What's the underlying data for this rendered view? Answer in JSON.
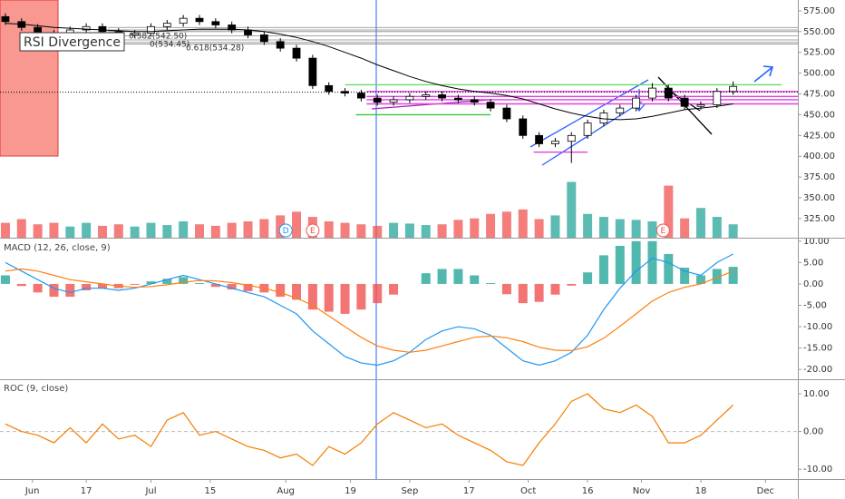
{
  "chart_data": [
    {
      "type": "candlestick",
      "x": [
        -5,
        -2,
        1,
        4,
        7,
        10,
        13,
        16,
        19,
        22,
        25,
        28,
        31,
        34,
        37,
        40,
        43,
        46,
        49,
        52,
        55,
        58,
        61,
        64,
        67,
        70,
        73,
        76,
        79,
        82,
        85,
        88,
        91,
        94,
        97,
        100,
        103,
        106,
        109,
        112,
        115,
        118,
        121,
        124,
        127,
        130
      ],
      "open": [
        568,
        562,
        555,
        548,
        545,
        552,
        556,
        550,
        546,
        548,
        556,
        560,
        566,
        562,
        558,
        552,
        546,
        538,
        530,
        518,
        485,
        478,
        476,
        470,
        465,
        468,
        472,
        474,
        470,
        468,
        465,
        458,
        445,
        425,
        415,
        418,
        425,
        440,
        452,
        458,
        470,
        482,
        470,
        460,
        462,
        478
      ],
      "high": [
        572,
        566,
        559,
        552,
        556,
        560,
        560,
        554,
        552,
        560,
        564,
        570,
        570,
        566,
        562,
        556,
        550,
        542,
        534,
        522,
        489,
        482,
        480,
        474,
        472,
        476,
        478,
        478,
        474,
        472,
        469,
        462,
        449,
        429,
        422,
        429,
        444,
        456,
        462,
        474,
        488,
        486,
        474,
        466,
        482,
        490
      ],
      "low": [
        558,
        551,
        544,
        541,
        541,
        548,
        546,
        542,
        542,
        544,
        552,
        556,
        558,
        554,
        548,
        542,
        534,
        526,
        514,
        481,
        474,
        472,
        466,
        461,
        461,
        464,
        468,
        466,
        464,
        461,
        454,
        441,
        421,
        411,
        411,
        392,
        421,
        436,
        448,
        454,
        466,
        466,
        456,
        456,
        458,
        474
      ],
      "close": [
        562,
        555,
        548,
        545,
        552,
        556,
        550,
        546,
        548,
        556,
        560,
        566,
        562,
        558,
        552,
        546,
        538,
        530,
        518,
        485,
        478,
        476,
        470,
        465,
        468,
        472,
        474,
        470,
        468,
        465,
        458,
        445,
        425,
        415,
        418,
        425,
        440,
        452,
        458,
        470,
        482,
        470,
        460,
        462,
        478,
        484
      ],
      "up_color": "#ffffff",
      "down_color": "#000000",
      "ma": {
        "color": "#000000",
        "values": [
          560,
          559,
          557,
          555,
          554,
          553,
          552,
          551,
          550,
          550,
          551,
          552,
          553,
          553,
          553,
          552,
          550,
          547,
          543,
          538,
          532,
          525,
          518,
          510,
          503,
          496,
          490,
          485,
          481,
          478,
          476,
          473,
          469,
          463,
          457,
          452,
          448,
          445,
          444,
          445,
          448,
          452,
          456,
          458,
          460,
          463
        ]
      },
      "xlim": [
        -6,
        142
      ],
      "xticks": [
        {
          "value": 0,
          "label": "Jun"
        },
        {
          "value": 10,
          "label": "17"
        },
        {
          "value": 22,
          "label": "Jul"
        },
        {
          "value": 33,
          "label": "15"
        },
        {
          "value": 47,
          "label": "Aug"
        },
        {
          "value": 59,
          "label": "19"
        },
        {
          "value": 70,
          "label": "Sep"
        },
        {
          "value": 81,
          "label": "17"
        },
        {
          "value": 92,
          "label": "Oct"
        },
        {
          "value": 103,
          "label": "16"
        },
        {
          "value": 113,
          "label": "Nov"
        },
        {
          "value": 124,
          "label": "18"
        },
        {
          "value": 136,
          "label": "Dec"
        }
      ],
      "ylim": [
        302,
        588
      ],
      "yticks": [
        {
          "value": 325,
          "label": "325.00"
        },
        {
          "value": 350,
          "label": "350.00"
        },
        {
          "value": 375,
          "label": "375.00"
        },
        {
          "value": 400,
          "label": "400.00"
        },
        {
          "value": 425,
          "label": "425.00"
        },
        {
          "value": 450,
          "label": "450.00"
        },
        {
          "value": 475,
          "label": "475.00"
        },
        {
          "value": 500,
          "label": "500.00"
        },
        {
          "value": 525,
          "label": "525.00"
        },
        {
          "value": 550,
          "label": "550.00"
        },
        {
          "value": 575,
          "label": "575.00"
        }
      ],
      "hlines": [
        {
          "value": 555,
          "color": "#888888",
          "from": 14,
          "to": 142
        },
        {
          "value": 552,
          "color": "#888888",
          "from": 14,
          "to": 142
        },
        {
          "value": 550,
          "color": "#888888",
          "from": 14,
          "to": 142
        },
        {
          "value": 545,
          "color": "#888888",
          "from": 14,
          "to": 142
        },
        {
          "value": 540,
          "color": "#888888",
          "from": 14,
          "to": 142
        },
        {
          "value": 537,
          "color": "#888888",
          "from": 14,
          "to": 142
        },
        {
          "value": 535,
          "color": "#888888",
          "from": 14,
          "to": 142
        },
        {
          "value": 486,
          "color": "#66dd66",
          "from": 58,
          "to": 139
        },
        {
          "value": 450,
          "color": "#33cc33",
          "from": 60,
          "to": 85
        },
        {
          "value": 478,
          "color": "#e040e0",
          "from": 62,
          "to": 142
        },
        {
          "value": 472,
          "color": "#e040e0",
          "from": 62,
          "to": 142
        },
        {
          "value": 468,
          "color": "#e040e0",
          "from": 62,
          "to": 142
        },
        {
          "value": 463,
          "color": "#e040e0",
          "from": 62,
          "to": 142
        },
        {
          "value": 405,
          "color": "#e040e0",
          "from": 93,
          "to": 103
        },
        {
          "value": 477,
          "color": "#000000",
          "from": -6,
          "to": 142,
          "dash": true
        }
      ],
      "events": [
        {
          "label": "D",
          "x": 47,
          "color": "#2196f3"
        },
        {
          "label": "E",
          "x": 52,
          "color": "#ef5350"
        },
        {
          "label": "E",
          "x": 117,
          "color": "#ef5350"
        }
      ],
      "annotations": [
        "RSI Divergence",
        "0.382(542.50)",
        "0(534.45)",
        "0.618(534.28)"
      ]
    },
    {
      "type": "bar",
      "values": [
        2,
        2.5,
        1.8,
        2,
        1.5,
        2,
        1.6,
        1.8,
        1.5,
        2,
        1.7,
        2.2,
        1.8,
        1.6,
        2,
        2.2,
        2.5,
        3,
        3.5,
        2.8,
        2.2,
        2,
        1.8,
        1.6,
        2,
        1.9,
        1.7,
        1.8,
        2.4,
        2.6,
        3.2,
        3.5,
        3.8,
        2.5,
        3,
        7.5,
        3.2,
        2.8,
        2.5,
        2.4,
        2.2,
        7,
        2.6,
        4,
        2.8,
        1.8
      ],
      "up_color": "#26a69a",
      "down_color": "#ef5350",
      "ylim": [
        0,
        10
      ]
    },
    {
      "type": "macd",
      "title": "MACD (12, 26, close, 9)",
      "series": [
        {
          "name": "MACD",
          "color": "#2196f3",
          "values": [
            5,
            3,
            1,
            -1,
            -2,
            -1,
            -1,
            -1.5,
            -1,
            0,
            1,
            2,
            1,
            0,
            -1,
            -2,
            -3,
            -5,
            -7,
            -11,
            -14,
            -17,
            -18.5,
            -19,
            -18,
            -16,
            -13,
            -11,
            -10,
            -10.5,
            -12,
            -15,
            -18,
            -19,
            -18,
            -16,
            -12,
            -6,
            -1,
            3,
            6,
            5,
            3,
            2,
            5,
            7
          ]
        },
        {
          "name": "Signal",
          "color": "#ff7f0e",
          "values": [
            3,
            3.5,
            3,
            2,
            1,
            0.5,
            0,
            -0.5,
            -0.8,
            -0.6,
            -0.2,
            0.4,
            0.8,
            0.7,
            0.3,
            -0.3,
            -1,
            -2,
            -3.3,
            -5,
            -7.5,
            -10,
            -12.5,
            -14.5,
            -15.5,
            -16,
            -15.5,
            -14.5,
            -13.5,
            -12.5,
            -12.2,
            -12.6,
            -13.5,
            -14.8,
            -15.5,
            -15.6,
            -14.7,
            -12.7,
            -9.9,
            -7,
            -4,
            -2,
            -0.8,
            0,
            1.5,
            3
          ]
        }
      ],
      "histogram": {
        "pos_color": "#26a69a",
        "neg_color": "#ef5350",
        "values": [
          2,
          -0.5,
          -2,
          -3,
          -3,
          -1.5,
          -1,
          -1,
          -0.2,
          0.6,
          1.2,
          1.6,
          0.2,
          -0.7,
          -1.3,
          -1.7,
          -2,
          -3,
          -3.7,
          -6,
          -6.5,
          -7,
          -6,
          -4.5,
          -2.5,
          0,
          2.5,
          3.5,
          3.5,
          2,
          0.2,
          -2.4,
          -4.5,
          -4.2,
          -2.5,
          -0.4,
          2.7,
          6.7,
          8.9,
          10,
          10,
          7,
          3.8,
          2,
          3.5,
          4
        ]
      },
      "ylim": [
        -22.3,
        10.6
      ],
      "yticks": [
        {
          "value": 10,
          "label": "10.00"
        },
        {
          "value": 5,
          "label": "5.00"
        },
        {
          "value": 0,
          "label": "0.00"
        },
        {
          "value": -5,
          "label": "-5.00"
        },
        {
          "value": -10,
          "label": "-10.00"
        },
        {
          "value": -15,
          "label": "-15.00"
        },
        {
          "value": -20,
          "label": "-20.00"
        }
      ]
    },
    {
      "type": "line",
      "title": "ROC (9, close)",
      "color": "#f57c00",
      "values": [
        2,
        0,
        -1,
        -3,
        1,
        -3,
        2,
        -2,
        -1,
        -4,
        3,
        5,
        -1,
        0,
        -2,
        -4,
        -5,
        -7,
        -6,
        -9,
        -4,
        -6,
        -3,
        2,
        5,
        3,
        1,
        2,
        -1,
        -3,
        -5,
        -8,
        -9,
        -3,
        2,
        8,
        10,
        6,
        5,
        7,
        4,
        -3,
        -3,
        -1,
        3,
        7
      ],
      "ylim": [
        -12.6,
        13.6
      ],
      "yticks": [
        {
          "value": 10,
          "label": "10.00"
        },
        {
          "value": 0,
          "label": "0.00"
        },
        {
          "value": -10,
          "label": "-10.00"
        }
      ],
      "zero_line": true
    }
  ]
}
